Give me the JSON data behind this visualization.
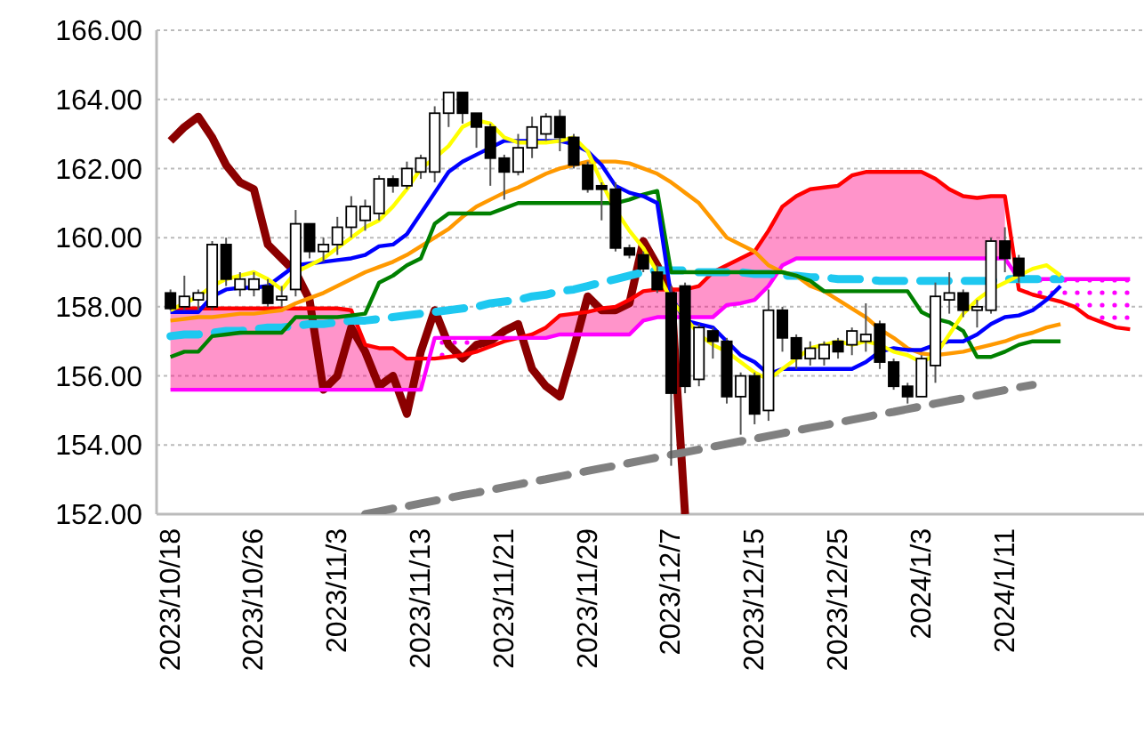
{
  "chart_data": {
    "type": "candlestick",
    "grid": "y",
    "ylim": [
      152,
      166
    ],
    "yticks": [
      {
        "value": 152,
        "label": "152.00"
      },
      {
        "value": 154,
        "label": "154.00"
      },
      {
        "value": 156,
        "label": "156.00"
      },
      {
        "value": 158,
        "label": "158.00"
      },
      {
        "value": 160,
        "label": "160.00"
      },
      {
        "value": 162,
        "label": "162.00"
      },
      {
        "value": 164,
        "label": "164.00"
      },
      {
        "value": 166,
        "label": "166.00"
      }
    ],
    "categories": [
      "2023/10/18",
      null,
      null,
      null,
      null,
      null,
      "2023/10/26",
      null,
      null,
      null,
      null,
      null,
      "2023/11/3",
      null,
      null,
      null,
      null,
      null,
      "2023/11/13",
      null,
      null,
      null,
      null,
      null,
      "2023/11/21",
      null,
      null,
      null,
      null,
      null,
      "2023/11/29",
      null,
      null,
      null,
      null,
      null,
      "2023/12/7",
      null,
      null,
      null,
      null,
      null,
      "2023/12/15",
      null,
      null,
      null,
      null,
      null,
      "2023/12/25",
      null,
      null,
      null,
      null,
      null,
      "2024/1/3",
      null,
      null,
      null,
      null,
      null,
      "2024/1/11",
      null,
      null,
      null,
      null,
      null,
      null,
      null,
      null,
      null
    ],
    "ohlc": [
      [
        158.4,
        158.5,
        157.9,
        157.95
      ],
      [
        158.0,
        158.9,
        157.9,
        158.3
      ],
      [
        158.2,
        158.5,
        157.9,
        158.4
      ],
      [
        158.0,
        159.9,
        157.9,
        159.8
      ],
      [
        159.8,
        160.0,
        158.6,
        158.8
      ],
      [
        158.5,
        159.0,
        158.3,
        158.8
      ],
      [
        158.5,
        159.0,
        158.3,
        158.8
      ],
      [
        158.6,
        158.8,
        158.0,
        158.1
      ],
      [
        158.2,
        158.6,
        158.0,
        158.3
      ],
      [
        158.5,
        160.8,
        158.3,
        160.4
      ],
      [
        160.4,
        160.4,
        159.4,
        159.6
      ],
      [
        159.6,
        160.0,
        159.3,
        159.8
      ],
      [
        159.8,
        160.6,
        159.5,
        160.3
      ],
      [
        160.3,
        161.2,
        160.0,
        160.9
      ],
      [
        160.5,
        161.1,
        160.2,
        160.9
      ],
      [
        160.7,
        161.8,
        160.5,
        161.7
      ],
      [
        161.7,
        161.8,
        161.3,
        161.5
      ],
      [
        161.5,
        162.2,
        161.4,
        162.0
      ],
      [
        161.9,
        162.4,
        161.7,
        162.3
      ],
      [
        161.9,
        163.8,
        161.6,
        163.6
      ],
      [
        163.6,
        164.2,
        163.2,
        164.2
      ],
      [
        164.2,
        164.2,
        163.3,
        163.6
      ],
      [
        163.6,
        163.6,
        162.6,
        163.2
      ],
      [
        163.2,
        163.3,
        161.5,
        162.3
      ],
      [
        162.3,
        162.4,
        161.1,
        161.9
      ],
      [
        161.9,
        163.0,
        161.8,
        162.6
      ],
      [
        162.6,
        163.5,
        162.3,
        163.2
      ],
      [
        163.0,
        163.6,
        162.8,
        163.5
      ],
      [
        163.5,
        163.7,
        162.5,
        162.9
      ],
      [
        162.9,
        163.0,
        162.0,
        162.1
      ],
      [
        162.1,
        162.2,
        161.3,
        161.4
      ],
      [
        161.5,
        161.6,
        160.5,
        161.4
      ],
      [
        161.4,
        161.6,
        159.6,
        159.7
      ],
      [
        159.7,
        159.8,
        159.4,
        159.5
      ],
      [
        159.5,
        159.6,
        159.0,
        159.1
      ],
      [
        159.0,
        159.2,
        158.4,
        158.5
      ],
      [
        158.4,
        158.6,
        153.4,
        155.5
      ],
      [
        158.6,
        158.7,
        155.5,
        155.7
      ],
      [
        155.9,
        157.5,
        155.7,
        157.4
      ],
      [
        157.3,
        157.4,
        156.5,
        157.0
      ],
      [
        157.0,
        157.1,
        155.2,
        155.4
      ],
      [
        155.4,
        156.1,
        154.3,
        156.0
      ],
      [
        156.0,
        156.1,
        154.6,
        154.9
      ],
      [
        155.0,
        158.5,
        154.7,
        157.9
      ],
      [
        157.9,
        158.0,
        156.7,
        157.1
      ],
      [
        157.1,
        157.2,
        156.2,
        156.5
      ],
      [
        156.5,
        157.0,
        156.3,
        156.8
      ],
      [
        156.5,
        157.0,
        156.3,
        156.9
      ],
      [
        157.0,
        157.1,
        156.5,
        156.7
      ],
      [
        156.9,
        157.4,
        156.6,
        157.3
      ],
      [
        157.0,
        158.1,
        156.7,
        157.2
      ],
      [
        157.5,
        157.6,
        156.2,
        156.4
      ],
      [
        156.4,
        156.5,
        155.6,
        155.7
      ],
      [
        155.7,
        155.8,
        155.2,
        155.4
      ],
      [
        155.4,
        156.6,
        155.4,
        156.5
      ],
      [
        156.3,
        158.7,
        155.8,
        158.3
      ],
      [
        158.2,
        159.0,
        157.8,
        158.4
      ],
      [
        158.4,
        158.5,
        157.7,
        157.9
      ],
      [
        157.9,
        158.2,
        157.4,
        158.0
      ],
      [
        157.9,
        160.0,
        157.8,
        159.9
      ],
      [
        159.9,
        160.3,
        159.0,
        159.4
      ],
      [
        159.4,
        159.5,
        158.7,
        158.9
      ],
      null,
      null,
      null,
      null,
      null,
      null,
      null,
      null
    ],
    "series": [
      {
        "type": "line",
        "color": "#8b0000",
        "line_style": "solid",
        "values": [
          162.8,
          163.2,
          163.5,
          162.9,
          162.1,
          161.6,
          161.4,
          159.8,
          159.4,
          159.0,
          158.2,
          155.6,
          156.0,
          157.4,
          156.7,
          155.7,
          156.0,
          154.9,
          156.7,
          157.9,
          156.9,
          156.5,
          156.9,
          157.0,
          157.3,
          157.5,
          156.2,
          155.7,
          155.4,
          156.8,
          158.3,
          157.9,
          157.9,
          158.1,
          159.9,
          159.2,
          158.4,
          152,
          null,
          null,
          null,
          null,
          null,
          null,
          null,
          null,
          null,
          null,
          null,
          null,
          null,
          null,
          null,
          null,
          null,
          null,
          null,
          null,
          null,
          null,
          null,
          null,
          null,
          null,
          null,
          null,
          null,
          null,
          null,
          null
        ]
      },
      {
        "type": "line",
        "color": "#ff0000",
        "line_style": "solid",
        "upper": [
          157.95,
          157.95,
          157.95,
          157.95,
          157.95,
          157.95,
          157.95,
          157.95,
          157.95,
          157.95,
          157.95,
          157.95,
          157.95,
          157.9,
          156.9,
          156.8,
          156.8,
          156.5,
          156.5,
          null,
          null,
          null,
          null,
          null,
          null,
          157.1,
          157.2,
          157.4,
          157.75,
          157.8,
          157.85,
          157.95,
          158.0,
          158.2,
          158.45,
          158.5,
          158.5,
          158.5,
          158.6,
          159.0,
          159.2,
          159.4,
          159.6,
          160.2,
          160.9,
          161.2,
          161.4,
          161.45,
          161.5,
          161.8,
          161.9,
          161.9,
          161.9,
          161.9,
          161.9,
          161.7,
          161.4,
          161.2,
          161.15,
          161.2,
          161.2,
          null,
          null,
          null,
          null,
          null,
          null,
          null,
          null,
          null
        ],
        "lower": [
          155.6,
          155.6,
          155.6,
          155.6,
          155.6,
          155.6,
          155.6,
          155.6,
          155.6,
          155.6,
          155.6,
          155.6,
          155.6,
          155.6,
          155.6,
          155.6,
          155.6,
          155.6,
          155.6,
          null,
          null,
          null,
          null,
          null,
          null,
          157.1,
          157.1,
          157.1,
          157.2,
          157.2,
          157.2,
          157.2,
          157.2,
          157.2,
          157.6,
          157.7,
          157.7,
          157.7,
          157.7,
          157.7,
          158.05,
          158.1,
          158.2,
          158.6,
          159.2,
          159.4,
          159.4,
          159.4,
          159.4,
          159.4,
          159.4,
          159.4,
          159.4,
          159.4,
          159.4,
          159.4,
          159.4,
          159.4,
          159.4,
          159.4,
          159.4,
          null,
          null,
          null,
          null,
          null,
          null,
          null,
          null,
          null
        ],
        "values": [
          157.95,
          157.95,
          157.95,
          157.95,
          157.95,
          157.95,
          157.95,
          157.95,
          157.95,
          157.95,
          157.95,
          157.95,
          157.95,
          157.9,
          156.9,
          156.8,
          156.8,
          156.5,
          156.5,
          156.5,
          156.55,
          156.6,
          156.7,
          156.85,
          157.0,
          157.1,
          157.2,
          157.4,
          157.75,
          157.8,
          157.85,
          157.95,
          158.0,
          158.2,
          158.45,
          158.5,
          158.5,
          158.5,
          158.6,
          159.0,
          159.2,
          159.4,
          159.6,
          160.2,
          160.9,
          161.2,
          161.4,
          161.45,
          161.5,
          161.8,
          161.9,
          161.9,
          161.9,
          161.9,
          161.9,
          161.7,
          161.4,
          161.2,
          161.15,
          161.2,
          161.2,
          158.5,
          158.35,
          158.25,
          158.15,
          158.0,
          157.7,
          157.55,
          157.4,
          157.35
        ]
      },
      {
        "type": "line",
        "color": "#ff00ff",
        "line_style": "solid",
        "upper": [
          null,
          null,
          null,
          null,
          null,
          null,
          null,
          null,
          null,
          null,
          null,
          null,
          null,
          null,
          null,
          null,
          null,
          null,
          null,
          157.1,
          157.1,
          157.1,
          157.1,
          157.1,
          157.1,
          null,
          null,
          null,
          null,
          null,
          null,
          null,
          null,
          null,
          null,
          null,
          null,
          null,
          null,
          null,
          null,
          null,
          null,
          null,
          null,
          null,
          null,
          null,
          null,
          null,
          null,
          null,
          null,
          null,
          null,
          null,
          null,
          null,
          null,
          null,
          null,
          158.8,
          158.8,
          158.8,
          158.8,
          158.8,
          158.8,
          158.8,
          158.8,
          158.8
        ],
        "lower": [
          null,
          null,
          null,
          null,
          null,
          null,
          null,
          null,
          null,
          null,
          null,
          null,
          null,
          null,
          null,
          null,
          null,
          null,
          null,
          156.5,
          156.55,
          156.6,
          156.7,
          156.85,
          157.0,
          null,
          null,
          null,
          null,
          null,
          null,
          null,
          null,
          null,
          null,
          null,
          null,
          null,
          null,
          null,
          null,
          null,
          null,
          null,
          null,
          null,
          null,
          null,
          null,
          null,
          null,
          null,
          null,
          null,
          null,
          null,
          null,
          null,
          null,
          null,
          null,
          158.5,
          158.35,
          158.25,
          158.15,
          158.0,
          157.7,
          157.55,
          157.4,
          157.35
        ],
        "values": [
          155.6,
          155.6,
          155.6,
          155.6,
          155.6,
          155.6,
          155.6,
          155.6,
          155.6,
          155.6,
          155.6,
          155.6,
          155.6,
          155.6,
          155.6,
          155.6,
          155.6,
          155.6,
          155.6,
          157.1,
          157.1,
          157.1,
          157.1,
          157.1,
          157.1,
          157.1,
          157.1,
          157.1,
          157.2,
          157.2,
          157.2,
          157.2,
          157.2,
          157.2,
          157.6,
          157.7,
          157.7,
          157.7,
          157.7,
          157.7,
          158.05,
          158.1,
          158.2,
          158.6,
          159.2,
          159.4,
          159.4,
          159.4,
          159.4,
          159.4,
          159.4,
          159.4,
          159.4,
          159.4,
          159.4,
          159.4,
          159.4,
          159.4,
          159.4,
          159.4,
          159.4,
          158.8,
          158.8,
          158.8,
          158.8,
          158.8,
          158.8,
          158.8,
          158.8,
          158.8
        ]
      },
      {
        "type": "line",
        "color": "#808080",
        "line_style": "dashed",
        "values": [
          null,
          null,
          null,
          null,
          null,
          null,
          null,
          null,
          null,
          null,
          null,
          null,
          null,
          null,
          152.0,
          152.08,
          152.16,
          152.23,
          152.31,
          152.39,
          152.47,
          152.55,
          152.62,
          152.7,
          152.78,
          152.86,
          152.94,
          153.01,
          153.09,
          153.17,
          153.25,
          153.33,
          153.4,
          153.48,
          153.56,
          153.64,
          153.72,
          153.79,
          153.87,
          153.95,
          154.03,
          154.11,
          154.18,
          154.26,
          154.34,
          154.42,
          154.5,
          154.57,
          154.65,
          154.73,
          154.81,
          154.89,
          154.96,
          155.04,
          155.12,
          155.2,
          155.28,
          155.35,
          155.43,
          155.51,
          155.59,
          155.67,
          155.74,
          null,
          null,
          null,
          null,
          null,
          null,
          null
        ]
      },
      {
        "type": "line",
        "color": "#1ec8f0",
        "line_style": "dashed",
        "values": [
          157.15,
          157.2,
          157.2,
          157.25,
          157.3,
          157.3,
          157.35,
          157.4,
          157.4,
          157.45,
          157.5,
          157.5,
          157.55,
          157.6,
          157.6,
          157.65,
          157.7,
          157.75,
          157.8,
          157.85,
          157.9,
          157.95,
          158.0,
          158.1,
          158.15,
          158.2,
          158.3,
          158.35,
          158.45,
          158.5,
          158.6,
          158.7,
          158.8,
          158.9,
          159.0,
          159.05,
          159.05,
          159.05,
          159.0,
          159.0,
          159.0,
          159.0,
          158.95,
          158.95,
          158.9,
          158.9,
          158.85,
          158.85,
          158.8,
          158.8,
          158.8,
          158.75,
          158.75,
          158.75,
          158.75,
          158.75,
          158.75,
          158.75,
          158.75,
          158.75,
          158.8,
          158.8,
          158.8,
          158.8,
          158.8,
          null,
          null,
          null,
          null,
          null
        ]
      },
      {
        "type": "line",
        "color": "#ff9900",
        "line_style": "solid",
        "values": [
          157.6,
          157.65,
          157.7,
          157.7,
          157.75,
          157.8,
          157.8,
          157.85,
          157.9,
          158.1,
          158.25,
          158.4,
          158.6,
          158.8,
          159.0,
          159.15,
          159.3,
          159.5,
          159.75,
          160.0,
          160.25,
          160.6,
          160.9,
          161.1,
          161.3,
          161.45,
          161.65,
          161.85,
          162.0,
          162.1,
          162.2,
          162.2,
          162.2,
          162.15,
          162.0,
          161.85,
          161.6,
          161.3,
          161.0,
          160.5,
          160.0,
          159.8,
          159.6,
          159.2,
          159.0,
          158.9,
          158.6,
          158.45,
          158.2,
          157.95,
          157.7,
          157.35,
          157.1,
          156.8,
          156.65,
          156.6,
          156.65,
          156.7,
          156.8,
          156.9,
          157.0,
          157.15,
          157.25,
          157.4,
          157.5,
          null,
          null,
          null,
          null,
          null
        ]
      },
      {
        "type": "line",
        "color": "#008000",
        "line_style": "solid",
        "values": [
          156.55,
          156.7,
          156.7,
          157.15,
          157.2,
          157.25,
          157.25,
          157.25,
          157.25,
          157.7,
          157.7,
          157.7,
          157.7,
          157.75,
          157.8,
          158.7,
          158.9,
          159.2,
          159.4,
          160.4,
          160.7,
          160.7,
          160.7,
          160.7,
          160.85,
          161.0,
          161.0,
          161.0,
          161.0,
          161.0,
          161.0,
          161.0,
          161.0,
          161.1,
          161.25,
          161.35,
          159.0,
          159.0,
          159.0,
          159.0,
          159.0,
          159.0,
          159.0,
          159.0,
          159.0,
          158.9,
          158.75,
          158.45,
          158.45,
          158.45,
          158.45,
          158.45,
          158.45,
          158.45,
          157.85,
          157.65,
          157.55,
          157.3,
          156.55,
          156.55,
          156.7,
          156.9,
          157.0,
          157.0,
          157.0,
          null,
          null,
          null,
          null,
          null
        ]
      },
      {
        "type": "line",
        "color": "#0000ff",
        "line_style": "solid",
        "values": [
          157.85,
          157.85,
          157.85,
          158.3,
          158.5,
          158.55,
          158.55,
          158.6,
          158.9,
          159.2,
          159.25,
          159.3,
          159.35,
          159.4,
          159.5,
          159.75,
          159.8,
          160.1,
          160.7,
          161.3,
          161.9,
          162.2,
          162.4,
          162.6,
          162.8,
          162.8,
          162.8,
          162.8,
          162.8,
          162.7,
          162.5,
          162.1,
          161.5,
          161.3,
          161.2,
          161.0,
          158.3,
          157.6,
          157.5,
          157.4,
          157.0,
          156.6,
          156.4,
          156.05,
          156.2,
          156.2,
          156.2,
          156.2,
          156.2,
          156.2,
          156.4,
          156.7,
          156.8,
          156.75,
          156.75,
          156.9,
          157.0,
          157.0,
          157.2,
          157.5,
          157.7,
          157.75,
          157.9,
          158.2,
          158.6,
          null,
          null,
          null,
          null,
          null
        ]
      },
      {
        "type": "line",
        "color": "#ffff00",
        "line_style": "solid",
        "values": [
          157.9,
          158.1,
          158.3,
          158.6,
          158.8,
          158.9,
          159.0,
          158.8,
          158.5,
          159.0,
          159.2,
          159.4,
          159.7,
          160.0,
          160.3,
          160.5,
          160.9,
          161.4,
          162.0,
          162.3,
          162.65,
          163.2,
          163.4,
          163.3,
          162.9,
          162.75,
          162.75,
          162.75,
          162.8,
          162.9,
          162.5,
          161.6,
          160.8,
          160.2,
          159.7,
          159.0,
          158.2,
          157.7,
          157.2,
          156.9,
          156.7,
          156.4,
          156.1,
          155.9,
          156.2,
          156.5,
          156.8,
          156.9,
          157.0,
          156.9,
          157.0,
          156.9,
          156.7,
          156.6,
          156.4,
          156.6,
          157.2,
          157.8,
          158.2,
          158.5,
          158.7,
          158.9,
          159.1,
          159.2,
          158.9,
          null,
          null,
          null,
          null,
          null
        ]
      }
    ]
  }
}
